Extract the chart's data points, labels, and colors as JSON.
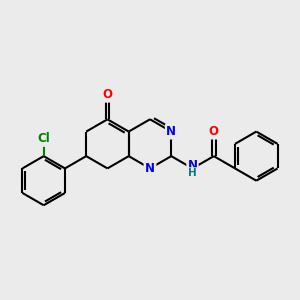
{
  "bg_color": "#ebebeb",
  "bond_color": "#000000",
  "bond_width": 1.5,
  "atom_colors": {
    "N": "#0000ff",
    "O": "#ff0000",
    "Cl": "#008000",
    "C": "#000000",
    "H": "#008080"
  },
  "font_size_atom": 8.5,
  "font_size_NH": 7.5
}
